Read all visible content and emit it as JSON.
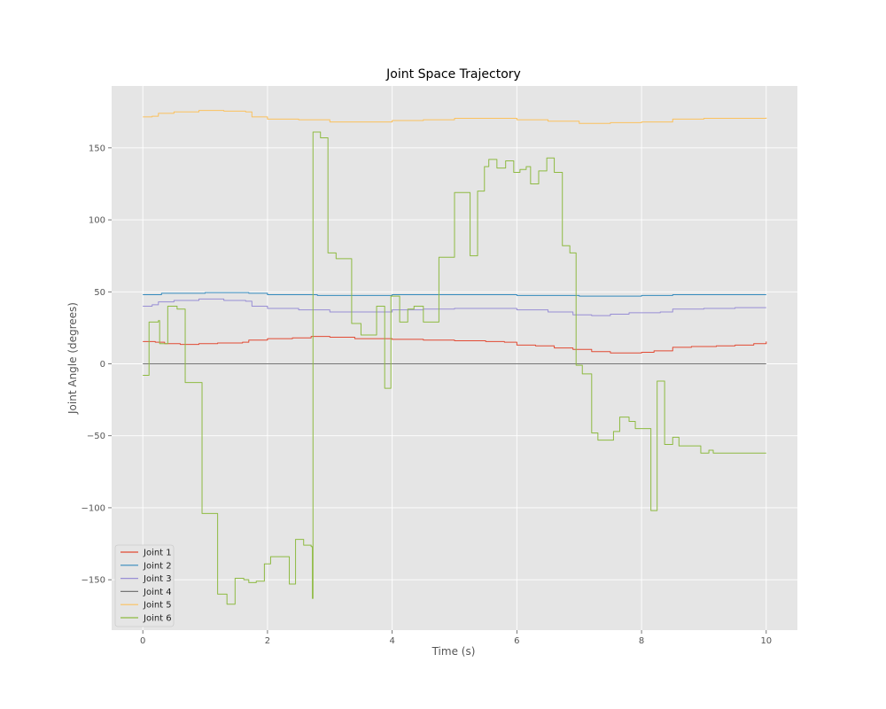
{
  "chart_data": {
    "type": "line",
    "title": "Joint Space Trajectory",
    "xlabel": "Time (s)",
    "ylabel": "Joint Angle (degrees)",
    "xlim": [
      -0.5,
      10.5
    ],
    "ylim": [
      -185,
      193
    ],
    "xticks": [
      0,
      2,
      4,
      6,
      8,
      10
    ],
    "yticks": [
      -150,
      -100,
      -50,
      0,
      50,
      100,
      150
    ],
    "ytick_labels": [
      "−150",
      "−100",
      "−50",
      "0",
      "50",
      "100",
      "150"
    ],
    "grid": true,
    "legend_position": "lower-left",
    "step": true,
    "series": [
      {
        "name": "Joint 1",
        "color": "#e24a33",
        "points": [
          [
            0,
            15.5
          ],
          [
            0.2,
            15
          ],
          [
            0.35,
            14
          ],
          [
            0.6,
            13.5
          ],
          [
            0.9,
            14
          ],
          [
            1.2,
            14.5
          ],
          [
            1.6,
            15
          ],
          [
            1.7,
            16.5
          ],
          [
            2.0,
            17.5
          ],
          [
            2.4,
            18
          ],
          [
            2.7,
            19
          ],
          [
            3.0,
            18.5
          ],
          [
            3.4,
            17.5
          ],
          [
            4.0,
            17
          ],
          [
            4.5,
            16.5
          ],
          [
            5.0,
            16
          ],
          [
            5.5,
            15.5
          ],
          [
            5.8,
            15
          ],
          [
            6.0,
            13
          ],
          [
            6.3,
            12.5
          ],
          [
            6.6,
            11
          ],
          [
            6.9,
            10
          ],
          [
            7.2,
            8.5
          ],
          [
            7.5,
            7.5
          ],
          [
            7.8,
            7.5
          ],
          [
            8.0,
            8
          ],
          [
            8.2,
            9
          ],
          [
            8.5,
            11.5
          ],
          [
            8.8,
            12
          ],
          [
            9.2,
            12.5
          ],
          [
            9.5,
            13
          ],
          [
            9.8,
            14
          ],
          [
            10.0,
            15.5
          ]
        ]
      },
      {
        "name": "Joint 2",
        "color": "#348abd",
        "points": [
          [
            0,
            48
          ],
          [
            0.3,
            49
          ],
          [
            1.0,
            49.5
          ],
          [
            1.7,
            49
          ],
          [
            2.0,
            48
          ],
          [
            2.8,
            47.5
          ],
          [
            3.5,
            47.5
          ],
          [
            4.0,
            48
          ],
          [
            5.0,
            48
          ],
          [
            6.0,
            47.5
          ],
          [
            7.0,
            47
          ],
          [
            7.5,
            47
          ],
          [
            8.0,
            47.5
          ],
          [
            8.5,
            48
          ],
          [
            9.0,
            48
          ],
          [
            10.0,
            48
          ]
        ]
      },
      {
        "name": "Joint 3",
        "color": "#988ed5",
        "points": [
          [
            0,
            40
          ],
          [
            0.15,
            41
          ],
          [
            0.25,
            43
          ],
          [
            0.5,
            44
          ],
          [
            0.9,
            45
          ],
          [
            1.3,
            44
          ],
          [
            1.65,
            43.5
          ],
          [
            1.75,
            40
          ],
          [
            2.0,
            38.5
          ],
          [
            2.5,
            37.5
          ],
          [
            3.0,
            36
          ],
          [
            3.5,
            36
          ],
          [
            4.0,
            37.5
          ],
          [
            4.5,
            38
          ],
          [
            5.0,
            38.5
          ],
          [
            5.5,
            38.5
          ],
          [
            6.0,
            37.5
          ],
          [
            6.5,
            36
          ],
          [
            6.9,
            34
          ],
          [
            7.2,
            33.5
          ],
          [
            7.5,
            34.5
          ],
          [
            7.8,
            35.5
          ],
          [
            8.3,
            36
          ],
          [
            8.5,
            38
          ],
          [
            9.0,
            38.5
          ],
          [
            9.5,
            39
          ],
          [
            10.0,
            39
          ]
        ]
      },
      {
        "name": "Joint 4",
        "color": "#777777",
        "points": [
          [
            0,
            0
          ],
          [
            10,
            0
          ]
        ]
      },
      {
        "name": "Joint 5",
        "color": "#fbc15e",
        "points": [
          [
            0,
            171.5
          ],
          [
            0.15,
            172
          ],
          [
            0.25,
            174
          ],
          [
            0.5,
            175
          ],
          [
            0.9,
            176
          ],
          [
            1.3,
            175.5
          ],
          [
            1.65,
            175
          ],
          [
            1.75,
            171.5
          ],
          [
            2.0,
            170
          ],
          [
            2.5,
            169.5
          ],
          [
            3.0,
            168
          ],
          [
            3.5,
            168
          ],
          [
            4.0,
            169
          ],
          [
            4.5,
            169.5
          ],
          [
            5.0,
            170.5
          ],
          [
            5.5,
            170.5
          ],
          [
            6.0,
            169.5
          ],
          [
            6.5,
            168.5
          ],
          [
            7.0,
            167
          ],
          [
            7.5,
            167.5
          ],
          [
            8.0,
            168
          ],
          [
            8.5,
            170
          ],
          [
            9.0,
            170.5
          ],
          [
            10.0,
            171
          ]
        ]
      },
      {
        "name": "Joint 6",
        "color": "#8eba42",
        "points": [
          [
            0,
            -8
          ],
          [
            0.1,
            29
          ],
          [
            0.25,
            30
          ],
          [
            0.27,
            14
          ],
          [
            0.4,
            40
          ],
          [
            0.55,
            38
          ],
          [
            0.68,
            -13
          ],
          [
            0.95,
            -104
          ],
          [
            1.2,
            -160
          ],
          [
            1.35,
            -167
          ],
          [
            1.48,
            -149
          ],
          [
            1.62,
            -150
          ],
          [
            1.7,
            -152
          ],
          [
            1.82,
            -151
          ],
          [
            1.95,
            -139
          ],
          [
            2.05,
            -134
          ],
          [
            2.3,
            -134
          ],
          [
            2.35,
            -153
          ],
          [
            2.45,
            -122
          ],
          [
            2.58,
            -126
          ],
          [
            2.7,
            -127
          ],
          [
            2.72,
            -163
          ],
          [
            2.73,
            161
          ],
          [
            2.85,
            157
          ],
          [
            2.97,
            77
          ],
          [
            3.1,
            73
          ],
          [
            3.35,
            28
          ],
          [
            3.5,
            20
          ],
          [
            3.75,
            40
          ],
          [
            3.88,
            -17
          ],
          [
            3.98,
            47
          ],
          [
            4.12,
            29
          ],
          [
            4.25,
            38
          ],
          [
            4.35,
            40
          ],
          [
            4.5,
            29
          ],
          [
            4.75,
            74
          ],
          [
            5.0,
            119
          ],
          [
            5.25,
            75
          ],
          [
            5.37,
            120
          ],
          [
            5.48,
            137
          ],
          [
            5.55,
            142
          ],
          [
            5.68,
            136
          ],
          [
            5.82,
            141
          ],
          [
            5.95,
            133
          ],
          [
            6.05,
            135
          ],
          [
            6.15,
            137
          ],
          [
            6.22,
            125
          ],
          [
            6.35,
            134
          ],
          [
            6.48,
            143
          ],
          [
            6.6,
            133
          ],
          [
            6.73,
            82
          ],
          [
            6.85,
            77
          ],
          [
            6.95,
            -1
          ],
          [
            7.05,
            -7
          ],
          [
            7.2,
            -48
          ],
          [
            7.3,
            -53
          ],
          [
            7.55,
            -47
          ],
          [
            7.65,
            -37
          ],
          [
            7.8,
            -40
          ],
          [
            7.9,
            -45
          ],
          [
            8.15,
            -102
          ],
          [
            8.25,
            -12
          ],
          [
            8.37,
            -56
          ],
          [
            8.5,
            -51
          ],
          [
            8.6,
            -57
          ],
          [
            8.95,
            -62
          ],
          [
            9.08,
            -60
          ],
          [
            9.15,
            -62
          ],
          [
            10.0,
            -62
          ]
        ]
      }
    ]
  }
}
